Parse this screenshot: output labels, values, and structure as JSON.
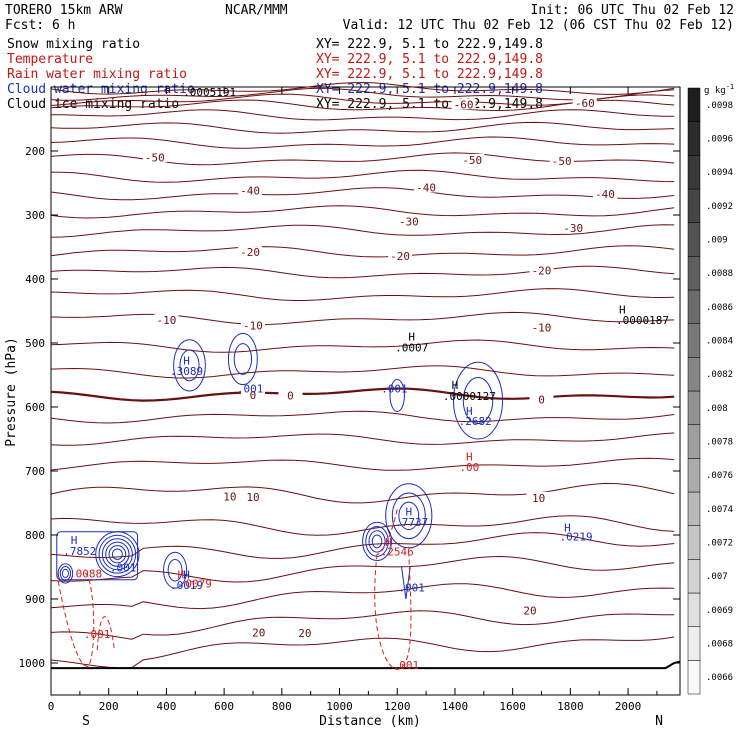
{
  "header": {
    "model": "TORERO  15km ARW",
    "org": "NCAR/MMM",
    "init": "Init: 06 UTC Thu 02 Feb 12",
    "fcst": "Fcst:     6 h",
    "valid": "Valid: 12 UTC Thu 02 Feb 12 (06 CST Thu 02 Feb 12)"
  },
  "legend": [
    {
      "name": "Snow mixing ratio",
      "color": "#000000",
      "xy": "XY= 222.9,  5.1 to 222.9,149.8"
    },
    {
      "name": "Temperature",
      "color": "#c01818",
      "xy": "XY= 222.9,  5.1 to 222.9,149.8"
    },
    {
      "name": "Rain water mixing ratio",
      "color": "#c01818",
      "xy": "XY= 222.9,  5.1 to 222.9,149.8"
    },
    {
      "name": "Cloud water mixing ratio",
      "color": "#1a2fbf",
      "xy": "XY= 222.9,  5.1 to 222.9,149.8"
    },
    {
      "name": "Cloud ice mixing ratio",
      "color": "#000000",
      "xy": "XY= 222.9,  5.1 to 222.9,149.8"
    }
  ],
  "colors": {
    "temperature": "#6b1010",
    "rain": "#d42020",
    "cloud_water": "#1a2fbf",
    "snow": "#000000",
    "ground": "#000000"
  },
  "chart_data": {
    "type": "line",
    "xlabel": "Distance (km)",
    "ylabel": "Pressure (hPa)",
    "xlim": [
      0,
      2180
    ],
    "ylim": [
      1050,
      100
    ],
    "x_ticks": [
      0,
      200,
      400,
      600,
      800,
      1000,
      1200,
      1400,
      1600,
      1800,
      2000
    ],
    "y_ticks": [
      200,
      300,
      400,
      500,
      600,
      700,
      800,
      900,
      1000
    ],
    "x_end_labels": {
      "left": "S",
      "right": "N"
    },
    "colorbar": {
      "unit": "g kg",
      "unit_sup": "-1",
      "ticks": [
        ".0066",
        ".0068",
        ".0069",
        ".007",
        ".0072",
        ".0074",
        ".0076",
        ".0078",
        ".008",
        ".0082",
        ".0084",
        ".0086",
        ".0088",
        ".009",
        ".0092",
        ".0094",
        ".0096",
        ".0098"
      ]
    },
    "isotherm_labels": [
      {
        "text": "-60",
        "x": 1430,
        "p": 127
      },
      {
        "text": "-60",
        "x": 1850,
        "p": 125
      },
      {
        "text": "-50",
        "x": 360,
        "p": 210
      },
      {
        "text": "-50",
        "x": 1460,
        "p": 214
      },
      {
        "text": "-50",
        "x": 1770,
        "p": 216
      },
      {
        "text": "-40",
        "x": 690,
        "p": 262
      },
      {
        "text": "-40",
        "x": 1300,
        "p": 257
      },
      {
        "text": "-40",
        "x": 1920,
        "p": 267
      },
      {
        "text": "-30",
        "x": 1240,
        "p": 310
      },
      {
        "text": "-30",
        "x": 1810,
        "p": 320
      },
      {
        "text": "-20",
        "x": 690,
        "p": 358
      },
      {
        "text": "-20",
        "x": 1210,
        "p": 364
      },
      {
        "text": "-20",
        "x": 1700,
        "p": 387
      },
      {
        "text": "-10",
        "x": 400,
        "p": 464
      },
      {
        "text": "-10",
        "x": 700,
        "p": 473
      },
      {
        "text": "-10",
        "x": 1700,
        "p": 476
      },
      {
        "text": "0",
        "x": 700,
        "p": 581
      },
      {
        "text": "0",
        "x": 830,
        "p": 582
      },
      {
        "text": "0",
        "x": 1700,
        "p": 588
      },
      {
        "text": "10",
        "x": 620,
        "p": 740
      },
      {
        "text": "10",
        "x": 700,
        "p": 741
      },
      {
        "text": "10",
        "x": 1690,
        "p": 742
      },
      {
        "text": "20",
        "x": 720,
        "p": 952
      },
      {
        "text": "20",
        "x": 880,
        "p": 953
      },
      {
        "text": "20",
        "x": 1660,
        "p": 918
      }
    ],
    "annotations": [
      {
        "text": ".0005191",
        "x": 550,
        "p": 108,
        "color": "#000000"
      },
      {
        "text": "H",
        "x": 470,
        "p": 527,
        "color": "#1a2fbf"
      },
      {
        "text": ".3089",
        "x": 470,
        "p": 544,
        "color": "#1a2fbf"
      },
      {
        "text": ".001",
        "x": 690,
        "p": 571,
        "color": "#1a2fbf"
      },
      {
        "text": "H",
        "x": 1250,
        "p": 490,
        "color": "#000000"
      },
      {
        "text": ".0007",
        "x": 1250,
        "p": 507,
        "color": "#000000"
      },
      {
        "text": ".001",
        "x": 1190,
        "p": 571,
        "color": "#1a2fbf"
      },
      {
        "text": "H",
        "x": 1400,
        "p": 566,
        "color": "#000000"
      },
      {
        "text": ".0000127",
        "x": 1450,
        "p": 583,
        "color": "#000000"
      },
      {
        "text": "H",
        "x": 1450,
        "p": 606,
        "color": "#1a2fbf"
      },
      {
        "text": ".2682",
        "x": 1470,
        "p": 622,
        "color": "#1a2fbf"
      },
      {
        "text": "H",
        "x": 1450,
        "p": 677,
        "color": "#d42020"
      },
      {
        "text": ".00",
        "x": 1450,
        "p": 694,
        "color": "#d42020"
      },
      {
        "text": "H",
        "x": 1980,
        "p": 448,
        "color": "#000000"
      },
      {
        "text": ".0000187",
        "x": 2050,
        "p": 464,
        "color": "#000000"
      },
      {
        "text": "H",
        "x": 1240,
        "p": 763,
        "color": "#1a2fbf"
      },
      {
        "text": ".7737",
        "x": 1250,
        "p": 780,
        "color": "#1a2fbf"
      },
      {
        "text": "H",
        "x": 1170,
        "p": 811,
        "color": "#d42020"
      },
      {
        "text": ".2546",
        "x": 1200,
        "p": 826,
        "color": "#d42020"
      },
      {
        "text": ".001",
        "x": 1250,
        "p": 882,
        "color": "#1a2fbf"
      },
      {
        "text": ".001",
        "x": 1230,
        "p": 1003,
        "color": "#d42020"
      },
      {
        "text": "H",
        "x": 1790,
        "p": 788,
        "color": "#1a2fbf"
      },
      {
        "text": ".0219",
        "x": 1820,
        "p": 802,
        "color": "#1a2fbf"
      },
      {
        "text": "H",
        "x": 80,
        "p": 808,
        "color": "#1a2fbf"
      },
      {
        "text": ".7852",
        "x": 100,
        "p": 825,
        "color": "#1a2fbf"
      },
      {
        "text": ".001",
        "x": 250,
        "p": 851,
        "color": "#1a2fbf"
      },
      {
        "text": ".0088",
        "x": 120,
        "p": 860,
        "color": "#d42020"
      },
      {
        "text": "H",
        "x": 450,
        "p": 862,
        "color": "#d42020"
      },
      {
        "text": "H",
        "x": 470,
        "p": 862,
        "color": "#1a2fbf"
      },
      {
        "text": ".0019",
        "x": 470,
        "p": 878,
        "color": "#1a2fbf"
      },
      {
        "text": ".0079",
        "x": 500,
        "p": 876,
        "color": "#d42020"
      },
      {
        "text": ".001",
        "x": 160,
        "p": 955,
        "color": "#d42020"
      }
    ]
  }
}
